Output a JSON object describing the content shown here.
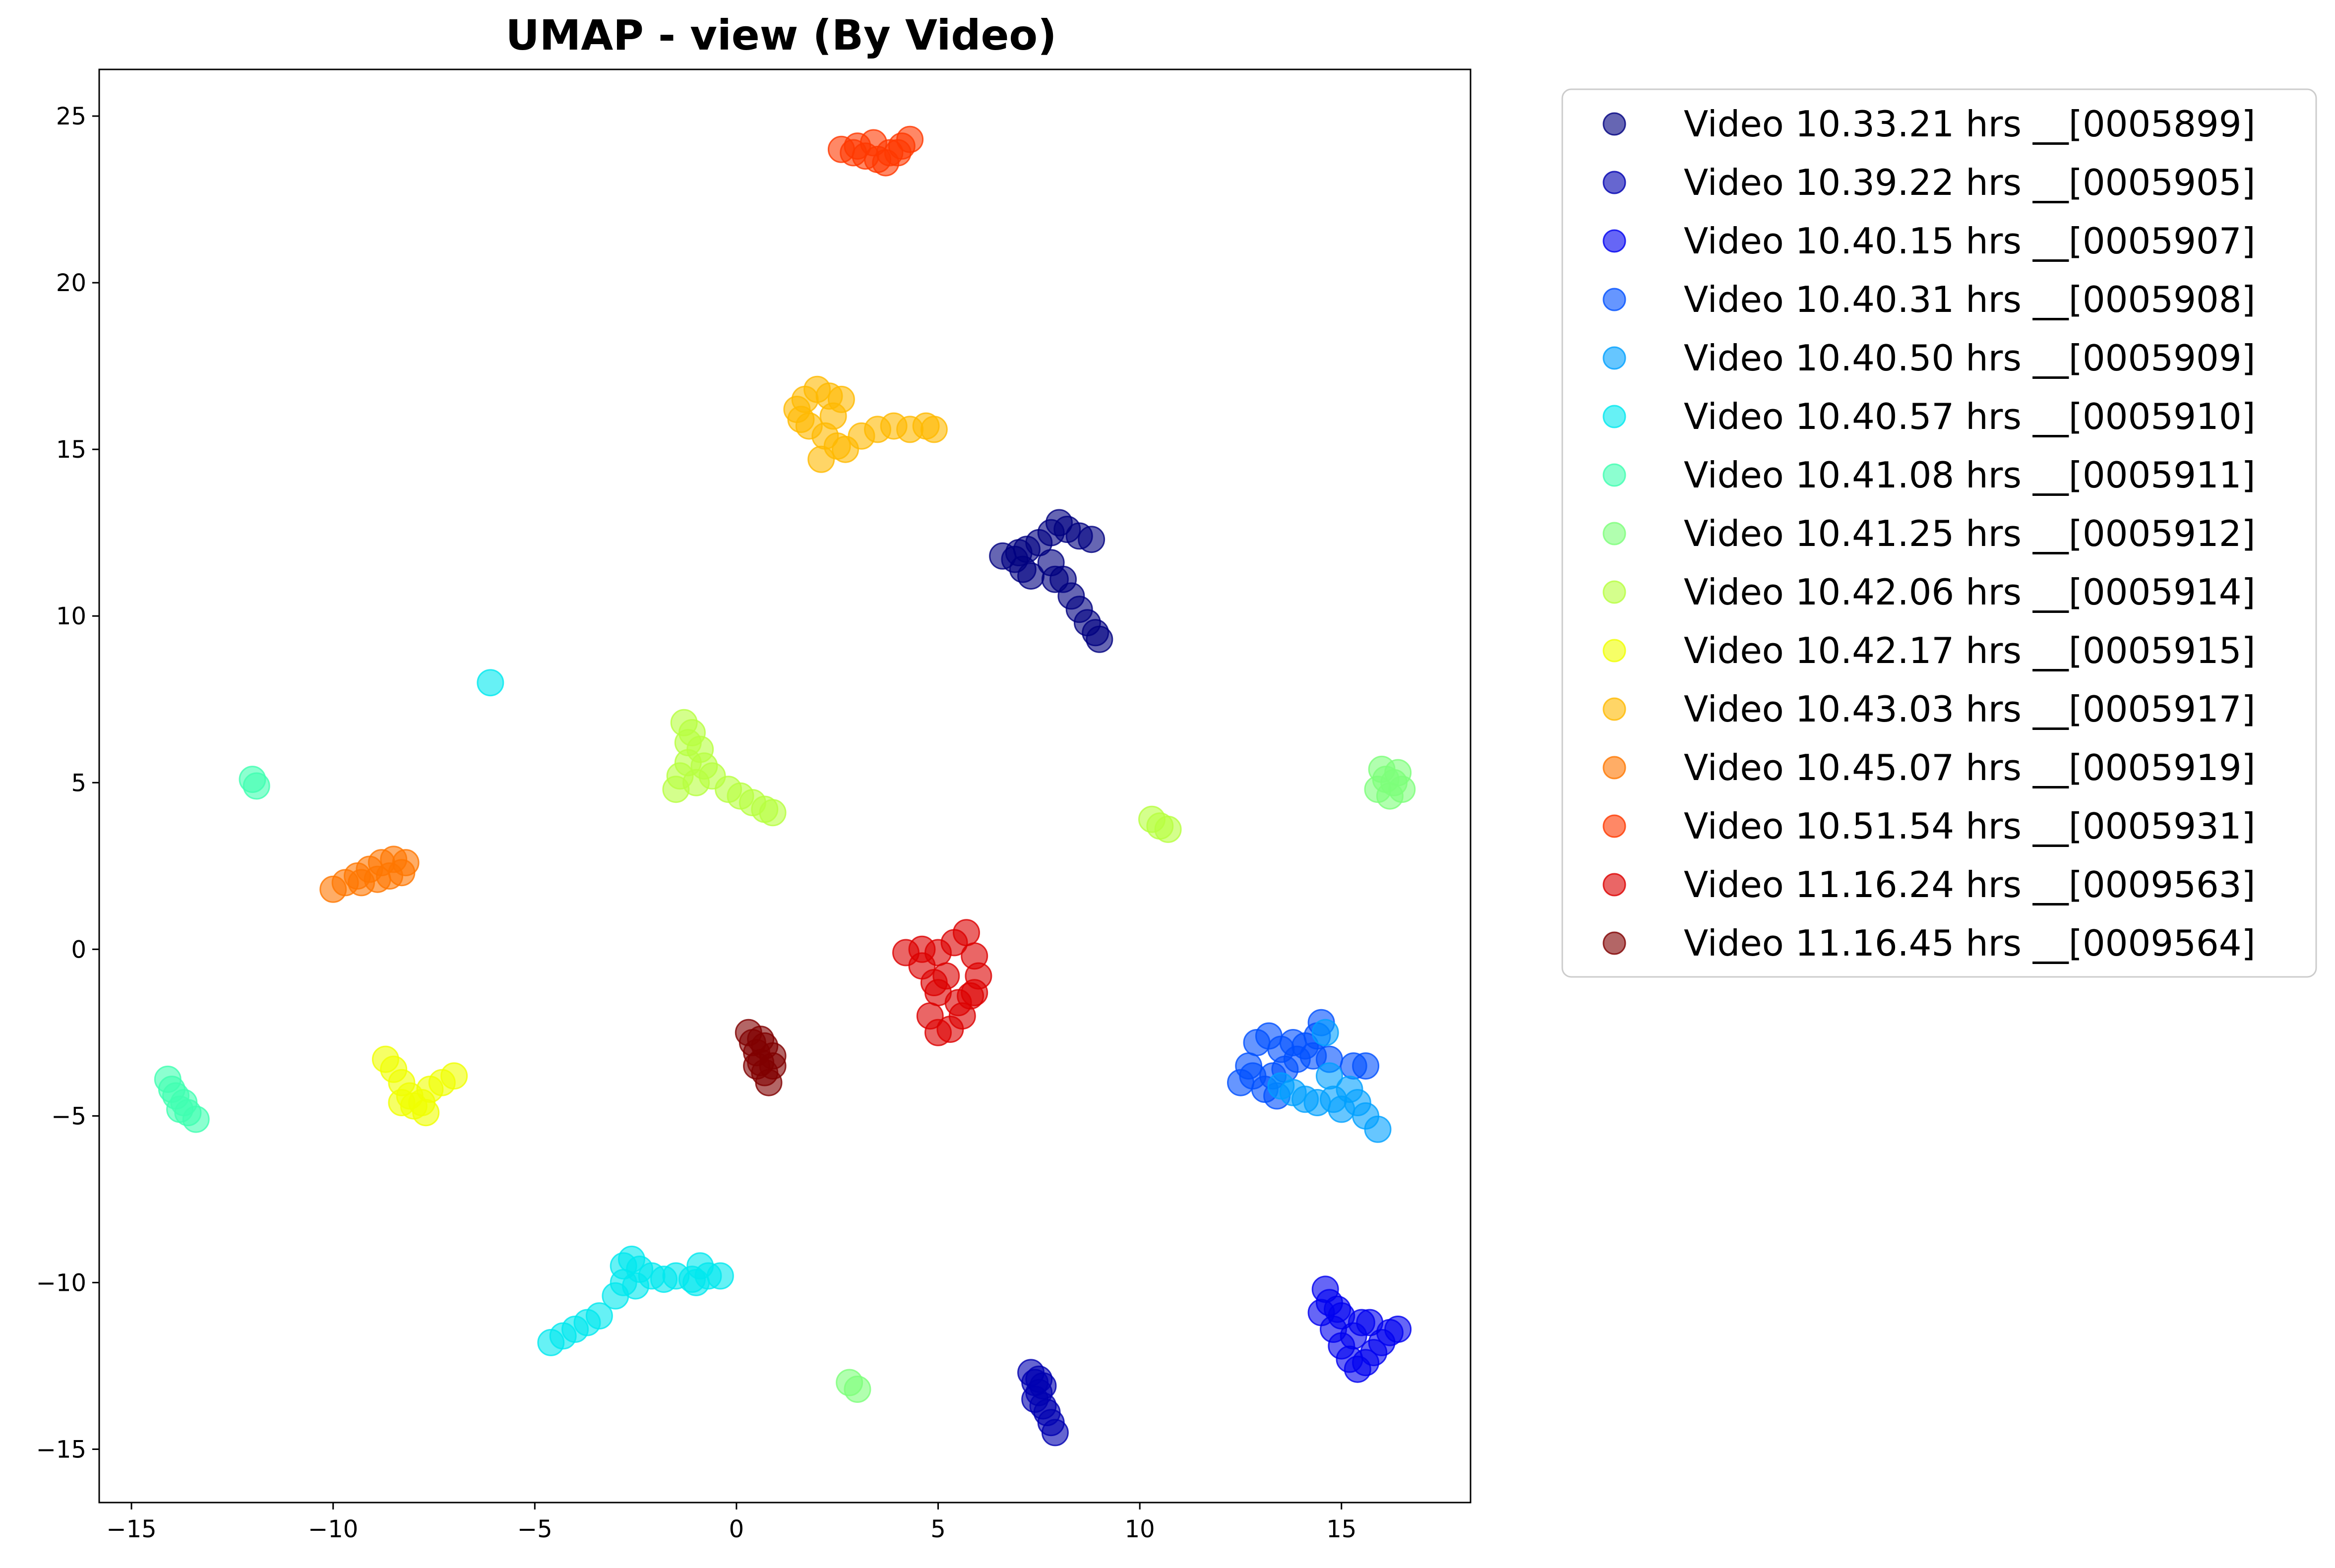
{
  "chart_data": {
    "type": "scatter",
    "title": "UMAP - view (By Video)",
    "xlabel": "",
    "ylabel": "",
    "xlim": [
      -15.8,
      18.2
    ],
    "ylim": [
      -16.6,
      26.4
    ],
    "xticks": [
      -15,
      -10,
      -5,
      0,
      5,
      10,
      15
    ],
    "yticks": [
      -15,
      -10,
      -5,
      0,
      5,
      10,
      15,
      20,
      25
    ],
    "grid": false,
    "legend_position": "outside-right",
    "series": [
      {
        "name": "Video 10.33.21 hrs __[0005899]",
        "color": "#000080",
        "points": [
          [
            6.6,
            11.8
          ],
          [
            6.9,
            11.7
          ],
          [
            7.1,
            11.4
          ],
          [
            7.3,
            11.2
          ],
          [
            7.2,
            12.0
          ],
          [
            7.5,
            12.2
          ],
          [
            7.8,
            12.5
          ],
          [
            8.0,
            12.8
          ],
          [
            8.2,
            12.6
          ],
          [
            8.5,
            12.4
          ],
          [
            8.8,
            12.3
          ],
          [
            7.8,
            11.6
          ],
          [
            8.1,
            11.1
          ],
          [
            8.3,
            10.6
          ],
          [
            8.5,
            10.2
          ],
          [
            8.7,
            9.8
          ],
          [
            8.9,
            9.5
          ],
          [
            9.0,
            9.3
          ],
          [
            7.9,
            11.1
          ],
          [
            7.0,
            11.9
          ]
        ]
      },
      {
        "name": "Video 10.39.22 hrs __[0005905]",
        "color": "#0000b0",
        "points": [
          [
            7.3,
            -12.7
          ],
          [
            7.4,
            -13.0
          ],
          [
            7.5,
            -13.3
          ],
          [
            7.6,
            -13.7
          ],
          [
            7.7,
            -13.9
          ],
          [
            7.5,
            -12.9
          ],
          [
            7.8,
            -14.2
          ],
          [
            7.9,
            -14.5
          ],
          [
            7.4,
            -13.5
          ],
          [
            7.6,
            -13.1
          ]
        ]
      },
      {
        "name": "Video 10.40.15 hrs __[0005907]",
        "color": "#0000f0",
        "points": [
          [
            14.6,
            -10.2
          ],
          [
            14.7,
            -10.6
          ],
          [
            14.5,
            -10.9
          ],
          [
            14.8,
            -11.4
          ],
          [
            15.0,
            -11.9
          ],
          [
            15.2,
            -12.3
          ],
          [
            15.4,
            -12.6
          ],
          [
            15.6,
            -12.4
          ],
          [
            15.8,
            -12.1
          ],
          [
            16.0,
            -11.8
          ],
          [
            16.2,
            -11.5
          ],
          [
            16.4,
            -11.4
          ],
          [
            15.0,
            -11.0
          ],
          [
            15.5,
            -11.2
          ],
          [
            14.9,
            -10.8
          ],
          [
            15.7,
            -11.2
          ],
          [
            15.3,
            -11.6
          ]
        ]
      },
      {
        "name": "Video 10.40.31 hrs __[0005908]",
        "color": "#0050ff",
        "points": [
          [
            12.5,
            -4.0
          ],
          [
            12.7,
            -3.5
          ],
          [
            12.9,
            -2.8
          ],
          [
            13.2,
            -2.6
          ],
          [
            13.5,
            -3.0
          ],
          [
            13.8,
            -2.8
          ],
          [
            14.1,
            -2.9
          ],
          [
            14.4,
            -2.6
          ],
          [
            14.5,
            -2.2
          ],
          [
            14.3,
            -3.2
          ],
          [
            13.6,
            -3.6
          ],
          [
            13.1,
            -4.2
          ],
          [
            13.4,
            -4.4
          ],
          [
            13.9,
            -3.3
          ],
          [
            14.7,
            -3.3
          ],
          [
            15.3,
            -3.5
          ],
          [
            15.6,
            -3.5
          ],
          [
            12.8,
            -3.8
          ],
          [
            13.3,
            -3.8
          ]
        ]
      },
      {
        "name": "Video 10.40.50 hrs __[0005909]",
        "color": "#00a0ff",
        "points": [
          [
            13.8,
            -4.3
          ],
          [
            14.1,
            -4.5
          ],
          [
            14.4,
            -4.6
          ],
          [
            14.8,
            -4.5
          ],
          [
            15.0,
            -4.8
          ],
          [
            15.2,
            -4.2
          ],
          [
            15.4,
            -4.6
          ],
          [
            15.6,
            -5.0
          ],
          [
            15.9,
            -5.4
          ],
          [
            14.6,
            -2.5
          ],
          [
            14.7,
            -3.8
          ],
          [
            13.5,
            -4.1
          ]
        ]
      },
      {
        "name": "Video 10.40.57 hrs __[0005910]",
        "color": "#00e8ef",
        "points": [
          [
            -6.1,
            8.0
          ],
          [
            -4.6,
            -11.8
          ],
          [
            -4.3,
            -11.6
          ],
          [
            -4.0,
            -11.4
          ],
          [
            -3.7,
            -11.2
          ],
          [
            -3.4,
            -11.0
          ],
          [
            -3.0,
            -10.4
          ],
          [
            -2.8,
            -10.0
          ],
          [
            -2.8,
            -9.5
          ],
          [
            -2.6,
            -9.3
          ],
          [
            -2.4,
            -9.6
          ],
          [
            -2.1,
            -9.8
          ],
          [
            -1.8,
            -9.9
          ],
          [
            -1.5,
            -9.8
          ],
          [
            -1.1,
            -9.9
          ],
          [
            -0.9,
            -9.5
          ],
          [
            -0.7,
            -9.8
          ],
          [
            -0.4,
            -9.8
          ],
          [
            -2.5,
            -10.1
          ],
          [
            -1.0,
            -10.0
          ]
        ]
      },
      {
        "name": "Video 10.41.08 hrs __[0005911]",
        "color": "#40ffb0",
        "points": [
          [
            -12.0,
            5.1
          ],
          [
            -11.9,
            4.9
          ],
          [
            -14.1,
            -3.9
          ],
          [
            -14.0,
            -4.2
          ],
          [
            -13.9,
            -4.4
          ],
          [
            -13.7,
            -4.6
          ],
          [
            -13.6,
            -4.9
          ],
          [
            -13.4,
            -5.1
          ],
          [
            -13.8,
            -4.8
          ]
        ]
      },
      {
        "name": "Video 10.41.25 hrs __[0005912]",
        "color": "#7dff7a",
        "points": [
          [
            16.2,
            4.6
          ],
          [
            16.3,
            5.0
          ],
          [
            16.4,
            5.3
          ],
          [
            16.1,
            5.1
          ],
          [
            16.5,
            4.8
          ],
          [
            15.9,
            4.8
          ],
          [
            16.0,
            5.4
          ],
          [
            2.8,
            -13.0
          ],
          [
            3.0,
            -13.2
          ]
        ]
      },
      {
        "name": "Video 10.42.06 hrs __[0005914]",
        "color": "#b7ff40",
        "points": [
          [
            -1.3,
            6.8
          ],
          [
            -1.1,
            6.5
          ],
          [
            -0.9,
            6.0
          ],
          [
            -1.2,
            5.6
          ],
          [
            -1.4,
            5.2
          ],
          [
            -1.5,
            4.8
          ],
          [
            -1.0,
            5.0
          ],
          [
            -0.8,
            5.5
          ],
          [
            -0.6,
            5.2
          ],
          [
            -0.2,
            4.8
          ],
          [
            0.1,
            4.6
          ],
          [
            0.4,
            4.4
          ],
          [
            0.7,
            4.2
          ],
          [
            0.9,
            4.1
          ],
          [
            -1.2,
            6.2
          ],
          [
            10.3,
            3.9
          ],
          [
            10.5,
            3.7
          ],
          [
            10.7,
            3.6
          ]
        ]
      },
      {
        "name": "Video 10.42.17 hrs __[0005915]",
        "color": "#f0ff00",
        "points": [
          [
            -8.7,
            -3.3
          ],
          [
            -8.5,
            -3.6
          ],
          [
            -8.3,
            -4.0
          ],
          [
            -8.1,
            -4.4
          ],
          [
            -8.0,
            -4.7
          ],
          [
            -7.8,
            -4.6
          ],
          [
            -7.6,
            -4.2
          ],
          [
            -7.3,
            -4.0
          ],
          [
            -7.0,
            -3.8
          ],
          [
            -8.3,
            -4.6
          ],
          [
            -7.7,
            -4.9
          ]
        ]
      },
      {
        "name": "Video 10.43.03 hrs __[0005917]",
        "color": "#ffb900",
        "points": [
          [
            1.5,
            16.2
          ],
          [
            1.7,
            16.5
          ],
          [
            2.0,
            16.8
          ],
          [
            2.3,
            16.6
          ],
          [
            2.6,
            16.5
          ],
          [
            1.8,
            15.7
          ],
          [
            2.2,
            15.4
          ],
          [
            2.5,
            15.1
          ],
          [
            2.1,
            14.7
          ],
          [
            2.7,
            15.0
          ],
          [
            3.1,
            15.4
          ],
          [
            3.5,
            15.6
          ],
          [
            3.9,
            15.7
          ],
          [
            4.3,
            15.6
          ],
          [
            4.7,
            15.7
          ],
          [
            4.9,
            15.6
          ],
          [
            2.4,
            16.0
          ],
          [
            1.6,
            15.9
          ]
        ]
      },
      {
        "name": "Video 10.45.07 hrs __[0005919]",
        "color": "#ff7700",
        "points": [
          [
            -10.0,
            1.8
          ],
          [
            -9.7,
            2.0
          ],
          [
            -9.4,
            2.2
          ],
          [
            -9.1,
            2.4
          ],
          [
            -8.8,
            2.6
          ],
          [
            -8.5,
            2.7
          ],
          [
            -8.2,
            2.6
          ],
          [
            -8.6,
            2.2
          ],
          [
            -8.9,
            2.1
          ],
          [
            -9.3,
            2.0
          ],
          [
            -8.3,
            2.3
          ]
        ]
      },
      {
        "name": "Video 10.51.54 hrs __[0005931]",
        "color": "#ff3800",
        "points": [
          [
            2.6,
            24.0
          ],
          [
            2.9,
            23.9
          ],
          [
            3.2,
            23.8
          ],
          [
            3.5,
            23.7
          ],
          [
            3.8,
            23.9
          ],
          [
            4.1,
            24.1
          ],
          [
            4.3,
            24.3
          ],
          [
            3.4,
            24.2
          ],
          [
            3.0,
            24.1
          ],
          [
            3.7,
            23.6
          ],
          [
            4.0,
            23.9
          ]
        ]
      },
      {
        "name": "Video 11.16.24 hrs __[0009563]",
        "color": "#dc0000",
        "points": [
          [
            4.2,
            -0.1
          ],
          [
            4.6,
            0.0
          ],
          [
            5.0,
            -0.1
          ],
          [
            5.4,
            0.2
          ],
          [
            5.7,
            0.5
          ],
          [
            5.9,
            -0.2
          ],
          [
            6.0,
            -0.8
          ],
          [
            5.8,
            -1.4
          ],
          [
            5.6,
            -2.0
          ],
          [
            5.3,
            -2.4
          ],
          [
            5.0,
            -2.5
          ],
          [
            4.8,
            -2.0
          ],
          [
            5.0,
            -1.3
          ],
          [
            5.2,
            -0.8
          ],
          [
            4.6,
            -0.5
          ],
          [
            5.5,
            -1.6
          ],
          [
            4.9,
            -1.0
          ],
          [
            5.9,
            -1.3
          ]
        ]
      },
      {
        "name": "Video 11.16.45 hrs __[0009564]",
        "color": "#800000",
        "points": [
          [
            0.3,
            -2.5
          ],
          [
            0.4,
            -2.8
          ],
          [
            0.5,
            -3.1
          ],
          [
            0.6,
            -3.4
          ],
          [
            0.7,
            -3.7
          ],
          [
            0.8,
            -4.0
          ],
          [
            0.9,
            -3.5
          ],
          [
            0.9,
            -3.2
          ],
          [
            0.7,
            -2.9
          ],
          [
            0.5,
            -3.5
          ],
          [
            0.6,
            -2.7
          ]
        ]
      }
    ]
  }
}
